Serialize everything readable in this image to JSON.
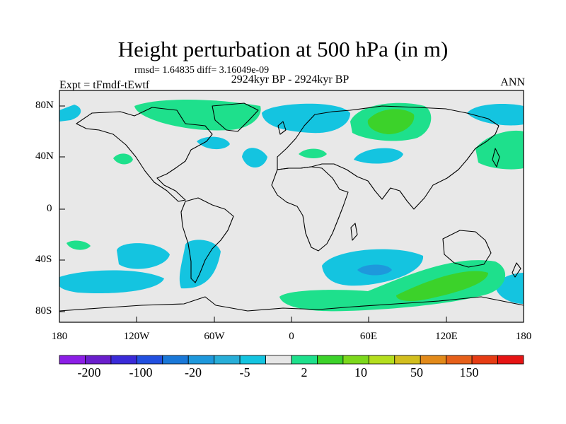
{
  "figure": {
    "title": "Height perturbation at 500 hPa (in m)",
    "stats": "rmsd= 1.64835 diff= 3.16049e-09",
    "experiment": "Expt = tFmdf-tEwtf",
    "period": "2924kyr BP - 2924kyr BP",
    "season": "ANN"
  },
  "map": {
    "projection": "cylindrical equidistant",
    "lon_range": [
      -180,
      180
    ],
    "lat_range": [
      -90,
      90
    ],
    "lat_labels": [
      "80N",
      "40N",
      "0",
      "40S",
      "80S"
    ],
    "lon_labels": [
      "180",
      "120W",
      "60W",
      "0",
      "60E",
      "120E",
      "180"
    ],
    "background_color": "#e8e8e8",
    "coastline_color": "#000000"
  },
  "colorbar": {
    "colors": [
      "#8c1ee6",
      "#6a1ecc",
      "#3a2ad8",
      "#2250e0",
      "#1a78d8",
      "#1e98dc",
      "#28aed8",
      "#14c4e0",
      "#e6e6e6",
      "#1ee08c",
      "#3cd22a",
      "#7cd81c",
      "#b4de1e",
      "#d2be1e",
      "#e28a1a",
      "#e6601a",
      "#e63c14",
      "#e61414"
    ],
    "labels": [
      "-200",
      "-100",
      "-20",
      "-5",
      "2",
      "10",
      "50",
      "150"
    ]
  },
  "regions": [
    {
      "name": "green-greenland",
      "color": "#1ee08c"
    },
    {
      "name": "green-eurasia",
      "color": "#1ee08c"
    },
    {
      "name": "darkgreen-siberia",
      "color": "#3cd22a"
    },
    {
      "name": "green-north-pacific",
      "color": "#1ee08c"
    },
    {
      "name": "green-southern-ocean",
      "color": "#1ee08c"
    },
    {
      "name": "darkgreen-southern-ocean",
      "color": "#3cd22a"
    },
    {
      "name": "blue-patagonia",
      "color": "#14c4e0"
    },
    {
      "name": "blue-indian-ocean",
      "color": "#14c4e0"
    },
    {
      "name": "darkblue-indian-ocean",
      "color": "#1e98dc"
    }
  ]
}
